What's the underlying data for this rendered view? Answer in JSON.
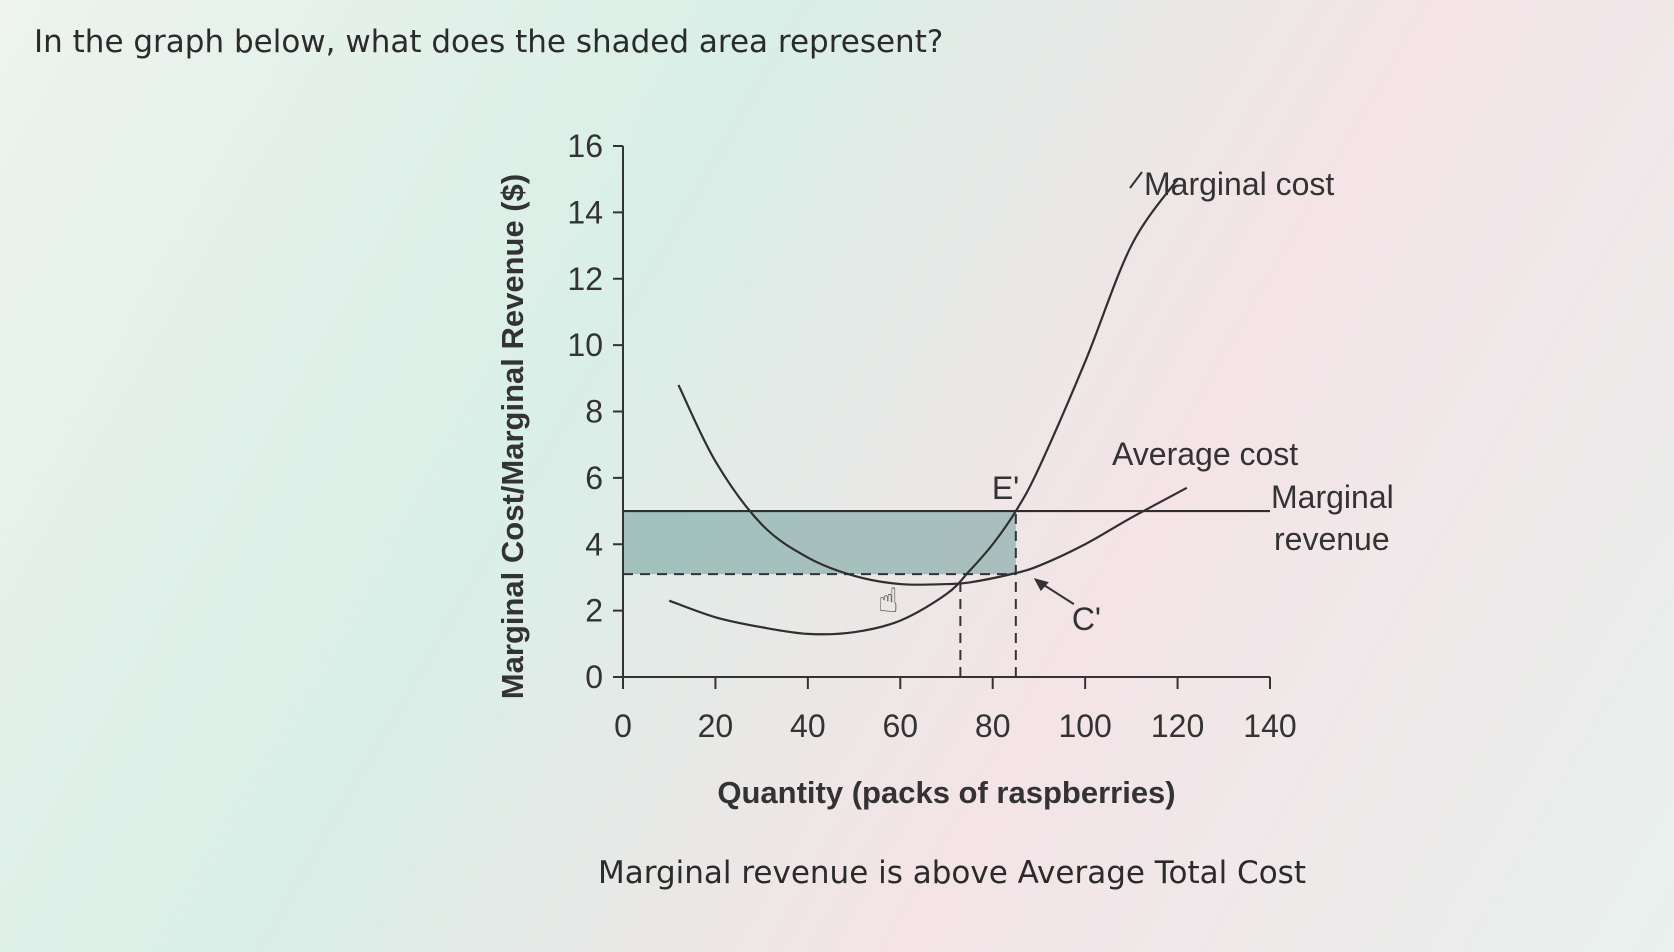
{
  "question": "In the graph below, what does the shaded area represent?",
  "answer_text": "Marginal revenue is above Average Total Cost",
  "chart_data": {
    "type": "line",
    "xlabel": "Quantity (packs of raspberries)",
    "ylabel": "Marginal Cost/Marginal Revenue ($)",
    "xlim": [
      0,
      140
    ],
    "ylim": [
      0,
      16
    ],
    "x_ticks": [
      0,
      20,
      40,
      60,
      80,
      100,
      120,
      140
    ],
    "y_ticks": [
      0,
      2,
      4,
      6,
      8,
      10,
      12,
      14,
      16
    ],
    "series": [
      {
        "name": "Marginal cost",
        "x": [
          10,
          20,
          30,
          40,
          50,
          60,
          70,
          75,
          80,
          85,
          90,
          100,
          110,
          120
        ],
        "y": [
          2.3,
          1.8,
          1.5,
          1.3,
          1.35,
          1.7,
          2.5,
          3.2,
          4.0,
          5.0,
          6.3,
          9.5,
          13.0,
          15.0
        ]
      },
      {
        "name": "Average cost",
        "x": [
          12,
          20,
          30,
          40,
          50,
          60,
          70,
          75,
          84,
          90,
          100,
          110,
          122
        ],
        "y": [
          8.8,
          6.5,
          4.6,
          3.6,
          3.05,
          2.8,
          2.8,
          2.85,
          3.1,
          3.35,
          4.0,
          4.8,
          5.7
        ]
      },
      {
        "name": "Marginal revenue",
        "x": [
          0,
          140
        ],
        "y": [
          5,
          5
        ]
      }
    ],
    "shaded_region": {
      "x": [
        0,
        85
      ],
      "y": [
        3.1,
        5
      ]
    },
    "reference_lines": [
      {
        "type": "horizontal",
        "y": 3.1,
        "x": [
          0,
          85
        ],
        "style": "dashed"
      },
      {
        "type": "vertical",
        "x": 85,
        "y": [
          0,
          5
        ],
        "style": "dashed"
      },
      {
        "type": "vertical",
        "x": 73,
        "y": [
          0,
          2.8
        ],
        "style": "dashed"
      }
    ],
    "annotations": [
      {
        "text": "E'",
        "x": 85,
        "y": 5
      },
      {
        "text": "C'",
        "x": 85,
        "y": 3.1
      }
    ]
  },
  "labels": {
    "marginal_cost": "Marginal cost",
    "average_cost": "Average cost",
    "marginal_revenue_1": "Marginal",
    "marginal_revenue_2": "revenue",
    "e_prime": "E'",
    "c_prime": "C'"
  }
}
